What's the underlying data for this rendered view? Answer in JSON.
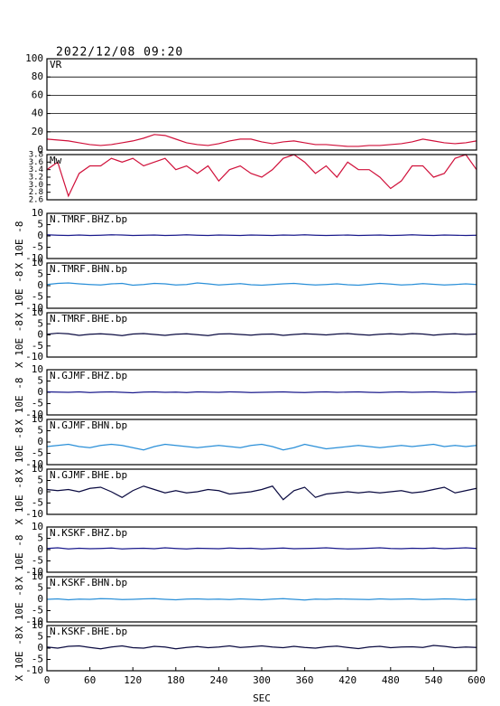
{
  "header": {
    "title": "2022/12/08 09:20"
  },
  "chart_data": [
    {
      "type": "line",
      "title": "VR",
      "color": "#d0103a",
      "grid": true,
      "xlim": [
        0,
        600
      ],
      "ylim": [
        0,
        100
      ],
      "yticks": [
        0,
        20,
        40,
        60,
        80,
        100
      ],
      "x": [
        0,
        15,
        30,
        45,
        60,
        75,
        90,
        105,
        120,
        135,
        150,
        165,
        180,
        195,
        210,
        225,
        240,
        255,
        270,
        285,
        300,
        315,
        330,
        345,
        360,
        375,
        390,
        405,
        420,
        435,
        450,
        465,
        480,
        495,
        510,
        525,
        540,
        555,
        570,
        585,
        600
      ],
      "values": [
        12,
        11,
        10,
        8,
        6,
        5,
        6,
        8,
        10,
        13,
        17,
        16,
        12,
        8,
        6,
        5,
        7,
        10,
        12,
        12,
        9,
        7,
        9,
        10,
        8,
        6,
        6,
        5,
        4,
        4,
        5,
        5,
        6,
        7,
        9,
        12,
        10,
        8,
        7,
        8,
        10
      ]
    },
    {
      "type": "line",
      "title": "Mw",
      "color": "#d0103a",
      "xlim": [
        0,
        600
      ],
      "ylim": [
        2.6,
        3.8
      ],
      "yticks": [
        2.6,
        2.8,
        {
          "value": 3,
          "label": "3.0"
        },
        3.2,
        3.4,
        3.6,
        3.8
      ],
      "x": [
        0,
        15,
        30,
        45,
        60,
        75,
        90,
        105,
        120,
        135,
        150,
        165,
        180,
        195,
        210,
        225,
        240,
        255,
        270,
        285,
        300,
        315,
        330,
        345,
        360,
        375,
        390,
        405,
        420,
        435,
        450,
        465,
        480,
        495,
        510,
        525,
        540,
        555,
        570,
        585,
        600
      ],
      "values": [
        3.4,
        3.6,
        2.7,
        3.3,
        3.5,
        3.5,
        3.7,
        3.6,
        3.7,
        3.5,
        3.6,
        3.7,
        3.4,
        3.5,
        3.3,
        3.5,
        3.1,
        3.4,
        3.5,
        3.3,
        3.2,
        3.4,
        3.7,
        3.8,
        3.6,
        3.3,
        3.5,
        3.2,
        3.6,
        3.4,
        3.4,
        3.2,
        2.9,
        3.1,
        3.5,
        3.5,
        3.2,
        3.3,
        3.7,
        3.8,
        3.4
      ]
    },
    {
      "type": "line",
      "title": "N.TMRF.BHZ.bp",
      "ylabel": "X 10E -8",
      "color": "#1a1a8c",
      "xlim": [
        0,
        600
      ],
      "ylim": [
        -10,
        10
      ],
      "yticks": [
        -10,
        -5,
        0,
        5,
        10
      ],
      "x": [
        0,
        15,
        30,
        45,
        60,
        75,
        90,
        105,
        120,
        135,
        150,
        165,
        180,
        195,
        210,
        225,
        240,
        255,
        270,
        285,
        300,
        315,
        330,
        345,
        360,
        375,
        390,
        405,
        420,
        435,
        450,
        465,
        480,
        495,
        510,
        525,
        540,
        555,
        570,
        585,
        600
      ],
      "values": [
        0.5,
        0.3,
        0.2,
        0.4,
        0.2,
        0.3,
        0.5,
        0.4,
        0.2,
        0.3,
        0.4,
        0.2,
        0.3,
        0.5,
        0.3,
        0.2,
        0.4,
        0.3,
        0.2,
        0.4,
        0.3,
        0.2,
        0.4,
        0.3,
        0.5,
        0.3,
        0.2,
        0.3,
        0.4,
        0.2,
        0.3,
        0.4,
        0.2,
        0.3,
        0.5,
        0.3,
        0.2,
        0.4,
        0.3,
        0.2,
        0.3
      ]
    },
    {
      "type": "line",
      "title": "N.TMRF.BHN.bp",
      "ylabel": "X 10E -8",
      "color": "#2a8fd8",
      "xlim": [
        0,
        600
      ],
      "ylim": [
        -10,
        10
      ],
      "yticks": [
        -10,
        -5,
        0,
        5,
        10
      ],
      "x": [
        0,
        15,
        30,
        45,
        60,
        75,
        90,
        105,
        120,
        135,
        150,
        165,
        180,
        195,
        210,
        225,
        240,
        255,
        270,
        285,
        300,
        315,
        330,
        345,
        360,
        375,
        390,
        405,
        420,
        435,
        450,
        465,
        480,
        495,
        510,
        525,
        540,
        555,
        570,
        585,
        600
      ],
      "values": [
        0.5,
        1,
        1.2,
        0.8,
        0.5,
        0.3,
        0.8,
        1,
        0.2,
        0.5,
        1,
        0.8,
        0.3,
        0.5,
        1.2,
        0.8,
        0.3,
        0.6,
        0.9,
        0.4,
        0.2,
        0.5,
        0.8,
        1,
        0.6,
        0.3,
        0.5,
        0.8,
        0.4,
        0.2,
        0.6,
        1,
        0.7,
        0.3,
        0.5,
        0.9,
        0.6,
        0.3,
        0.5,
        0.8,
        0.5
      ]
    },
    {
      "type": "line",
      "title": "N.TMRF.BHE.bp",
      "ylabel": "X 10E -8",
      "color": "#0a0a40",
      "xlim": [
        0,
        600
      ],
      "ylim": [
        -10,
        10
      ],
      "yticks": [
        -10,
        -5,
        0,
        5,
        10
      ],
      "x": [
        0,
        15,
        30,
        45,
        60,
        75,
        90,
        105,
        120,
        135,
        150,
        165,
        180,
        195,
        210,
        225,
        240,
        255,
        270,
        285,
        300,
        315,
        330,
        345,
        360,
        375,
        390,
        405,
        420,
        435,
        450,
        465,
        480,
        495,
        510,
        525,
        540,
        555,
        570,
        585,
        600
      ],
      "values": [
        0.3,
        0.8,
        0.5,
        -0.2,
        0.3,
        0.5,
        0.2,
        -0.3,
        0.4,
        0.6,
        0.2,
        -0.2,
        0.3,
        0.5,
        0.1,
        -0.3,
        0.4,
        0.5,
        0.2,
        -0.1,
        0.3,
        0.4,
        -0.2,
        0.2,
        0.5,
        0.3,
        0,
        0.4,
        0.6,
        0.2,
        -0.1,
        0.3,
        0.5,
        0.2,
        0.6,
        0.4,
        -0.1,
        0.3,
        0.5,
        0.2,
        0.4
      ]
    },
    {
      "type": "line",
      "title": "N.GJMF.BHZ.bp",
      "ylabel": "X 10E -8",
      "color": "#1a1a8c",
      "xlim": [
        0,
        600
      ],
      "ylim": [
        -10,
        10
      ],
      "yticks": [
        -10,
        -5,
        0,
        5,
        10
      ],
      "x": [
        0,
        15,
        30,
        45,
        60,
        75,
        90,
        105,
        120,
        135,
        150,
        165,
        180,
        195,
        210,
        225,
        240,
        255,
        270,
        285,
        300,
        315,
        330,
        345,
        360,
        375,
        390,
        405,
        420,
        435,
        450,
        465,
        480,
        495,
        510,
        525,
        540,
        555,
        570,
        585,
        600
      ],
      "values": [
        0.2,
        0.1,
        0,
        0.2,
        -0.1,
        0.1,
        0.2,
        0,
        -0.2,
        0.1,
        0.2,
        0,
        0.1,
        -0.1,
        0.2,
        0.1,
        0,
        0.2,
        0.1,
        -0.1,
        0,
        0.1,
        0.2,
        0,
        -0.1,
        0.1,
        0.2,
        0,
        0.1,
        0.2,
        0,
        -0.1,
        0.1,
        0.2,
        0,
        0.1,
        0.2,
        0,
        -0.1,
        0.1,
        0.2
      ]
    },
    {
      "type": "line",
      "title": "N.GJMF.BHN.bp",
      "ylabel": "X 10E -8",
      "color": "#2a8fd8",
      "xlim": [
        0,
        600
      ],
      "ylim": [
        -10,
        10
      ],
      "yticks": [
        -10,
        -5,
        0,
        5,
        10
      ],
      "x": [
        0,
        15,
        30,
        45,
        60,
        75,
        90,
        105,
        120,
        135,
        150,
        165,
        180,
        195,
        210,
        225,
        240,
        255,
        270,
        285,
        300,
        315,
        330,
        345,
        360,
        375,
        390,
        405,
        420,
        435,
        450,
        465,
        480,
        495,
        510,
        525,
        540,
        555,
        570,
        585,
        600
      ],
      "values": [
        -2,
        -1.5,
        -1,
        -2,
        -2.5,
        -1.5,
        -1,
        -1.5,
        -2.5,
        -3.5,
        -2,
        -1,
        -1.5,
        -2,
        -2.5,
        -2,
        -1.5,
        -2,
        -2.5,
        -1.5,
        -1,
        -2,
        -3.5,
        -2.5,
        -1,
        -2,
        -3,
        -2.5,
        -2,
        -1.5,
        -2,
        -2.5,
        -2,
        -1.5,
        -2,
        -1.5,
        -1,
        -2,
        -1.5,
        -2,
        -1.5
      ]
    },
    {
      "type": "line",
      "title": "N.GJMF.BHE.bp",
      "ylabel": "X 10E -8",
      "color": "#0a0a40",
      "xlim": [
        0,
        600
      ],
      "ylim": [
        -10,
        10
      ],
      "yticks": [
        -10,
        -5,
        0,
        5,
        10
      ],
      "x": [
        0,
        15,
        30,
        45,
        60,
        75,
        90,
        105,
        120,
        135,
        150,
        165,
        180,
        195,
        210,
        225,
        240,
        255,
        270,
        285,
        300,
        315,
        330,
        345,
        360,
        375,
        390,
        405,
        420,
        435,
        450,
        465,
        480,
        495,
        510,
        525,
        540,
        555,
        570,
        585,
        600
      ],
      "values": [
        1,
        0.5,
        1,
        0,
        1.5,
        2,
        0,
        -2.5,
        0.5,
        2.5,
        1,
        -0.5,
        0.5,
        -0.5,
        0,
        1,
        0.5,
        -1,
        -0.5,
        0,
        1,
        2.5,
        -3.5,
        0.5,
        2,
        -2.5,
        -1,
        -0.5,
        0,
        -0.5,
        0,
        -0.5,
        0,
        0.5,
        -0.5,
        0,
        1,
        2,
        -0.5,
        0.5,
        1.5
      ]
    },
    {
      "type": "line",
      "title": "N.KSKF.BHZ.bp",
      "ylabel": "X 10E -8",
      "color": "#1a1a8c",
      "xlim": [
        0,
        600
      ],
      "ylim": [
        -10,
        10
      ],
      "yticks": [
        -10,
        -5,
        0,
        5,
        10
      ],
      "x": [
        0,
        15,
        30,
        45,
        60,
        75,
        90,
        105,
        120,
        135,
        150,
        165,
        180,
        195,
        210,
        225,
        240,
        255,
        270,
        285,
        300,
        315,
        330,
        345,
        360,
        375,
        390,
        405,
        420,
        435,
        450,
        465,
        480,
        495,
        510,
        525,
        540,
        555,
        570,
        585,
        600
      ],
      "values": [
        0.5,
        0.8,
        0.3,
        0.6,
        0.4,
        0.5,
        0.7,
        0.3,
        0.5,
        0.6,
        0.4,
        0.8,
        0.5,
        0.3,
        0.6,
        0.5,
        0.4,
        0.7,
        0.5,
        0.6,
        0.3,
        0.5,
        0.7,
        0.4,
        0.5,
        0.6,
        0.8,
        0.5,
        0.3,
        0.4,
        0.6,
        0.8,
        0.5,
        0.4,
        0.6,
        0.5,
        0.7,
        0.4,
        0.6,
        0.8,
        0.5
      ]
    },
    {
      "type": "line",
      "title": "N.KSKF.BHN.bp",
      "ylabel": "X 10E -8",
      "color": "#2a8fd8",
      "xlim": [
        0,
        600
      ],
      "ylim": [
        -10,
        10
      ],
      "yticks": [
        -10,
        -5,
        0,
        5,
        10
      ],
      "x": [
        0,
        15,
        30,
        45,
        60,
        75,
        90,
        105,
        120,
        135,
        150,
        165,
        180,
        195,
        210,
        225,
        240,
        255,
        270,
        285,
        300,
        315,
        330,
        345,
        360,
        375,
        390,
        405,
        420,
        435,
        450,
        465,
        480,
        495,
        510,
        525,
        540,
        555,
        570,
        585,
        600
      ],
      "values": [
        0,
        0.2,
        -0.2,
        0.1,
        0,
        0.3,
        0.2,
        -0.1,
        0,
        0.2,
        0.3,
        0,
        -0.2,
        0.1,
        0.2,
        0,
        0.1,
        -0.1,
        0.2,
        0,
        -0.2,
        0.1,
        0.3,
        0,
        -0.3,
        0.1,
        0,
        0.2,
        0.1,
        0,
        -0.1,
        0.2,
        0,
        0.1,
        0.2,
        -0.1,
        0,
        0.2,
        0.1,
        -0.2,
        0
      ]
    },
    {
      "type": "line",
      "title": "N.KSKF.BHE.bp",
      "ylabel": "X 10E -8",
      "xlabel": "SEC",
      "color": "#0a0a40",
      "xlim": [
        0,
        600
      ],
      "ylim": [
        -10,
        10
      ],
      "yticks": [
        -10,
        -5,
        0,
        5,
        10
      ],
      "xticks": [
        0,
        60,
        120,
        180,
        240,
        300,
        360,
        420,
        480,
        540,
        600
      ],
      "x": [
        0,
        15,
        30,
        45,
        60,
        75,
        90,
        105,
        120,
        135,
        150,
        165,
        180,
        195,
        210,
        225,
        240,
        255,
        270,
        285,
        300,
        315,
        330,
        345,
        360,
        375,
        390,
        405,
        420,
        435,
        450,
        465,
        480,
        495,
        510,
        525,
        540,
        555,
        570,
        585,
        600
      ],
      "values": [
        0.5,
        0,
        0.8,
        1,
        0.3,
        -0.3,
        0.5,
        1,
        0.2,
        0,
        0.8,
        0.5,
        -0.3,
        0.3,
        0.7,
        0.2,
        0.5,
        1,
        0.3,
        0.6,
        1,
        0.5,
        0.2,
        0.8,
        0.3,
        0,
        0.6,
        0.9,
        0.3,
        -0.2,
        0.5,
        0.8,
        0.2,
        0.5,
        0.6,
        0.3,
        1.2,
        0.8,
        0.2,
        0.5,
        0.3
      ]
    }
  ]
}
